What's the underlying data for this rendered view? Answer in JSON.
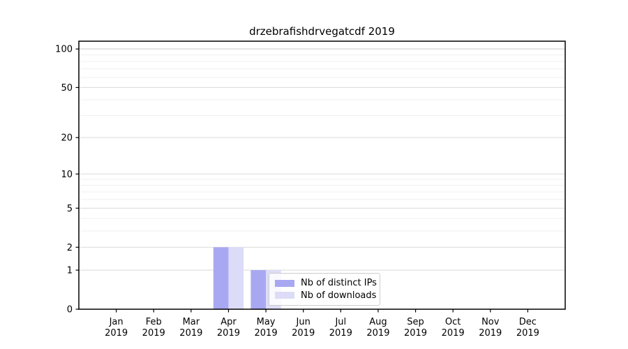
{
  "chart_data": {
    "type": "bar",
    "title": "drzebrafishdrvegatcdf 2019",
    "year_label": "2019",
    "categories": [
      "Jan",
      "Feb",
      "Mar",
      "Apr",
      "May",
      "Jun",
      "Jul",
      "Aug",
      "Sep",
      "Oct",
      "Nov",
      "Dec"
    ],
    "series": [
      {
        "name": "Nb of distinct IPs",
        "color": "#a8a8f2",
        "values": [
          0,
          0,
          0,
          2,
          1,
          0,
          0,
          0,
          0,
          0,
          0,
          0
        ]
      },
      {
        "name": "Nb of downloads",
        "color": "#dcdcf8",
        "values": [
          0,
          0,
          0,
          2,
          1,
          0,
          0,
          0,
          0,
          0,
          0,
          0
        ]
      }
    ],
    "yscale": "log1p",
    "ylim": [
      0,
      115
    ],
    "yticks": [
      0,
      1,
      2,
      5,
      10,
      20,
      50,
      100
    ],
    "minor_grid_values": [
      3,
      4,
      6,
      7,
      8,
      9,
      30,
      40,
      60,
      70,
      80,
      90
    ],
    "grid": "horizontal",
    "legend_position": "inside-bottom-center"
  },
  "style": {
    "background": "#ffffff",
    "axis_color": "#000000",
    "grid_major_color": "#d9d9d9",
    "grid_minor_color": "#efefef",
    "grid_top_color": "#c9c9c9",
    "text_color": "#000000"
  }
}
